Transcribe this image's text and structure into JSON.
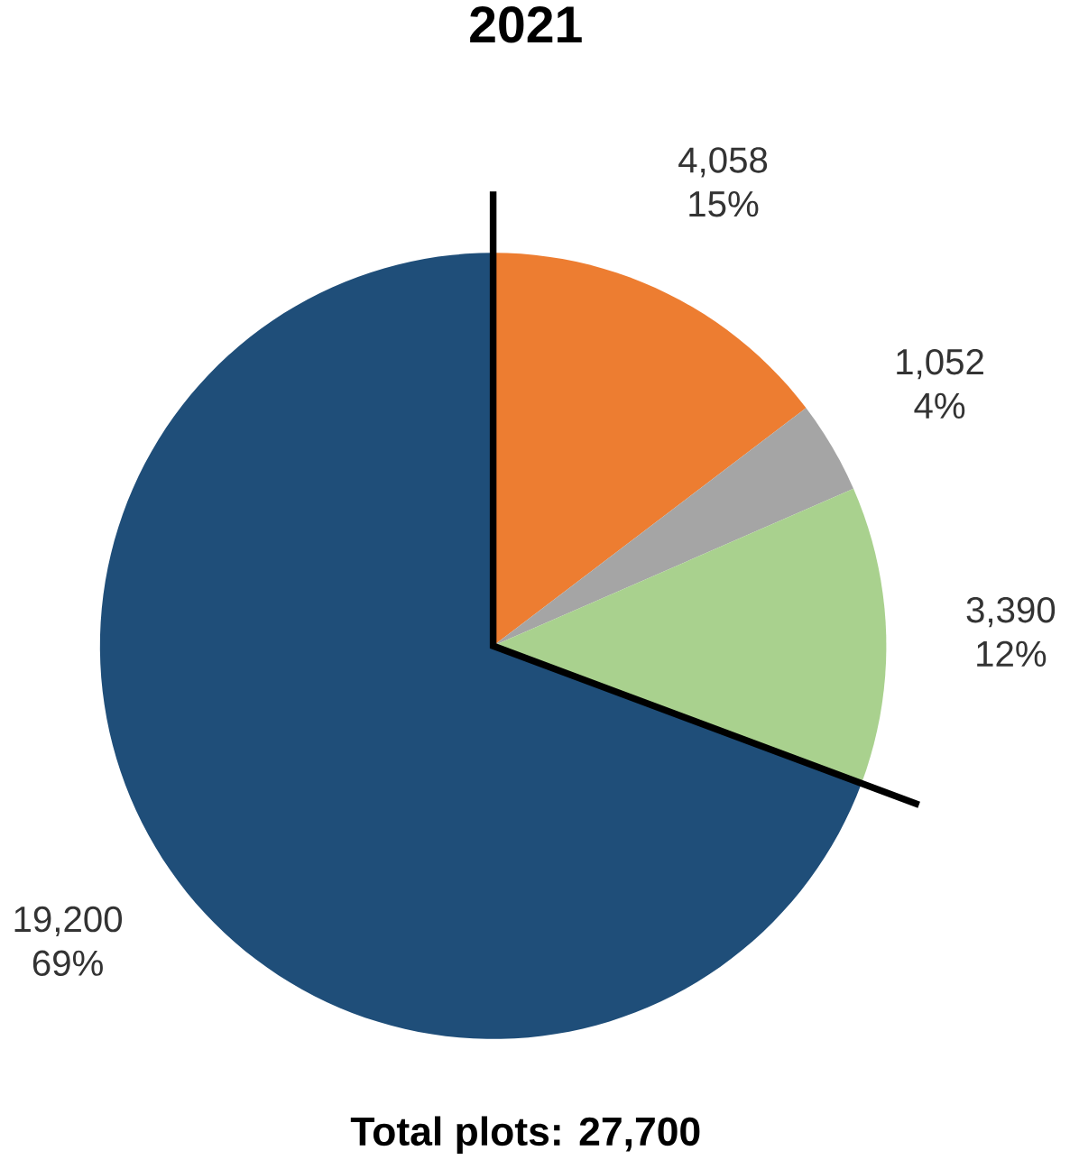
{
  "chart_data": {
    "type": "pie",
    "title": "2021",
    "categories": [
      null,
      null,
      null,
      null
    ],
    "values": [
      4058,
      1052,
      3390,
      19200
    ],
    "value_labels": [
      "4,058 15%",
      "1,052 4%",
      "3,390 12%",
      "19,200 69%"
    ],
    "colors": [
      "#ed7d31",
      "#a5a5a5",
      "#a9d18e",
      "#1f4e79"
    ],
    "annotations": [
      "Total plots: 27,700"
    ]
  }
}
